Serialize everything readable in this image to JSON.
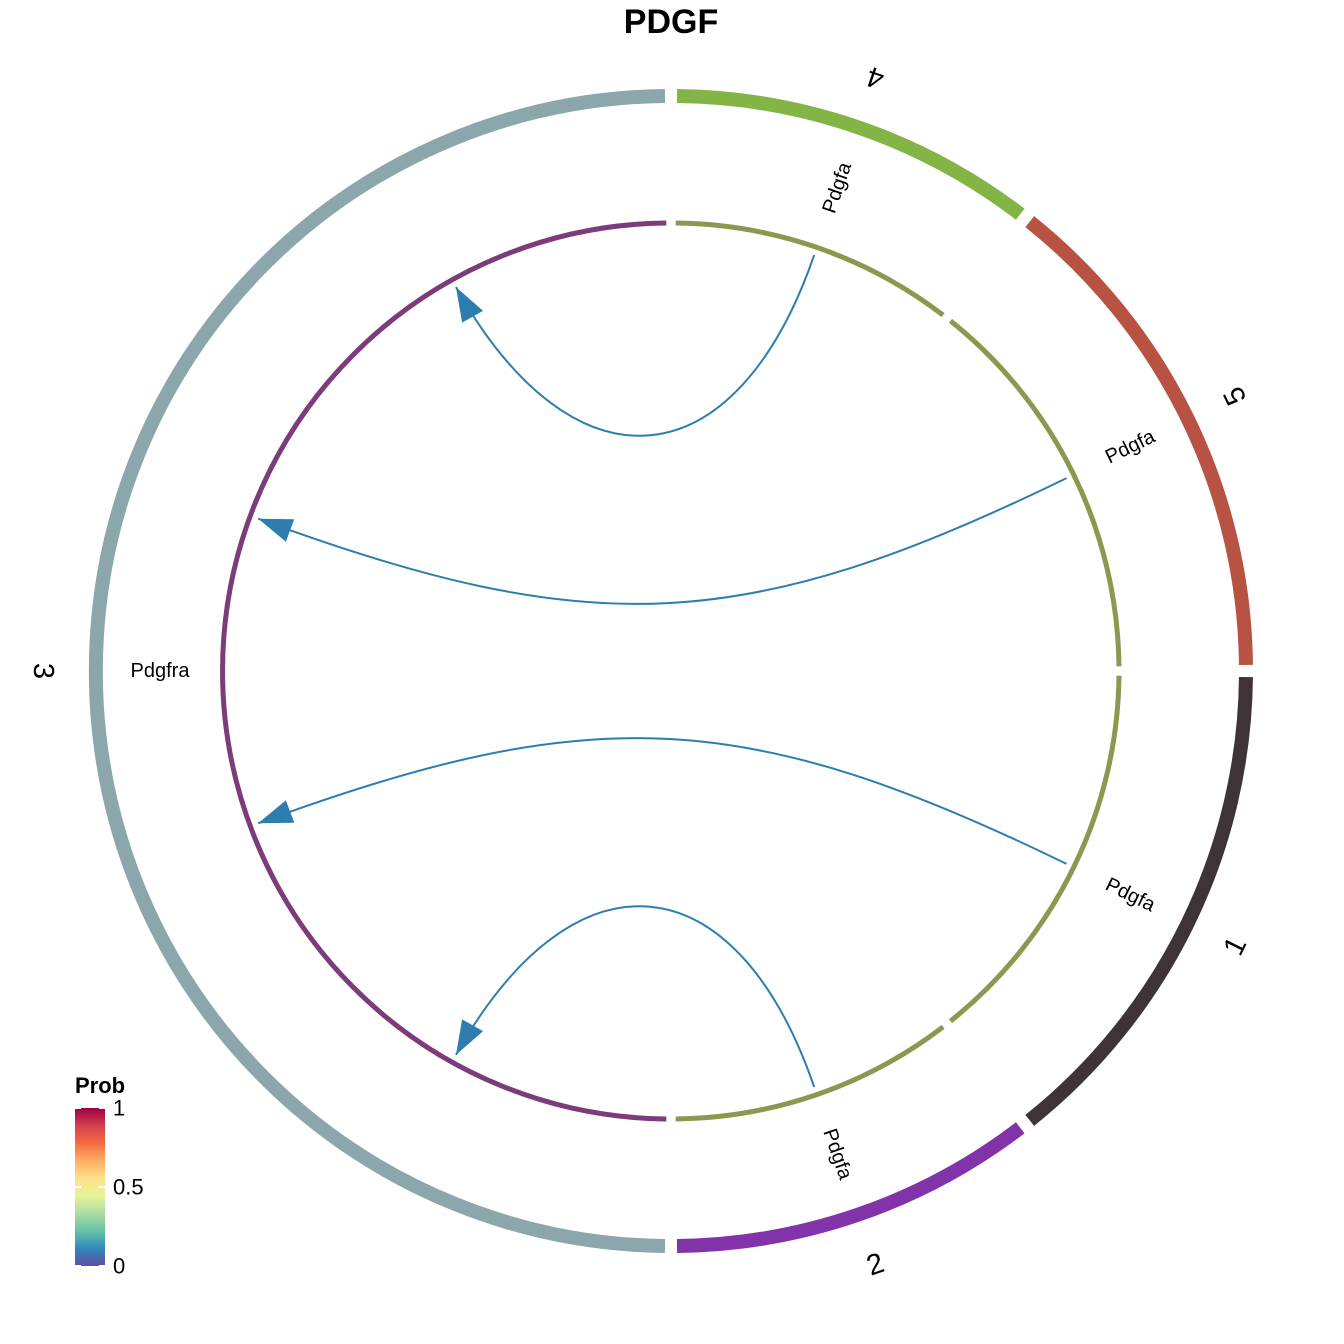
{
  "chart_data": {
    "type": "chord",
    "title": "PDGF",
    "sectors": [
      {
        "name": "1",
        "color": "#3E3438",
        "start": 90,
        "end": 142
      },
      {
        "name": "2",
        "color": "#8233AA",
        "start": 142,
        "end": 180
      },
      {
        "name": "3",
        "color": "#8BA7AB",
        "start": 180,
        "end": 360
      },
      {
        "name": "4",
        "color": "#83B546",
        "start": 0,
        "end": 38
      },
      {
        "name": "5",
        "color": "#B85243",
        "start": 38,
        "end": 90
      }
    ],
    "receptor_track": {
      "color": "#7C3B7A",
      "start": 180,
      "end": 360
    },
    "ligand_track": {
      "color": "#8A9850",
      "segments": [
        [
          0,
          38
        ],
        [
          38,
          90
        ],
        [
          90,
          142
        ],
        [
          142,
          180
        ]
      ]
    },
    "labels": [
      {
        "text": "Pdgfa",
        "sector": "4"
      },
      {
        "text": "Pdgfa",
        "sector": "5"
      },
      {
        "text": "Pdgfa",
        "sector": "1"
      },
      {
        "text": "Pdgfa",
        "sector": "2"
      },
      {
        "text": "Pdgfra",
        "sector": "3"
      }
    ],
    "links": [
      {
        "source": "4",
        "target": "3",
        "ligand": "Pdgfa",
        "receptor": "Pdgfra",
        "prob": 0.1,
        "color": "#2E7DAF"
      },
      {
        "source": "5",
        "target": "3",
        "ligand": "Pdgfa",
        "receptor": "Pdgfra",
        "prob": 0.1,
        "color": "#2E7DAF"
      },
      {
        "source": "1",
        "target": "3",
        "ligand": "Pdgfa",
        "receptor": "Pdgfra",
        "prob": 0.1,
        "color": "#2E7DAF"
      },
      {
        "source": "2",
        "target": "3",
        "ligand": "Pdgfa",
        "receptor": "Pdgfra",
        "prob": 0.1,
        "color": "#2E7DAF"
      }
    ],
    "legend": {
      "title": "Prob",
      "ticks": [
        "0",
        "0.5",
        "1"
      ],
      "tick_values": [
        0,
        0.5,
        1
      ],
      "colormap": [
        "#5E4FA2",
        "#3288BD",
        "#66C2A5",
        "#ABDDA4",
        "#E6F598",
        "#FEE08B",
        "#FDAE61",
        "#F46D43",
        "#D53E4F",
        "#9E0142"
      ],
      "placement": "bottom-left"
    }
  }
}
